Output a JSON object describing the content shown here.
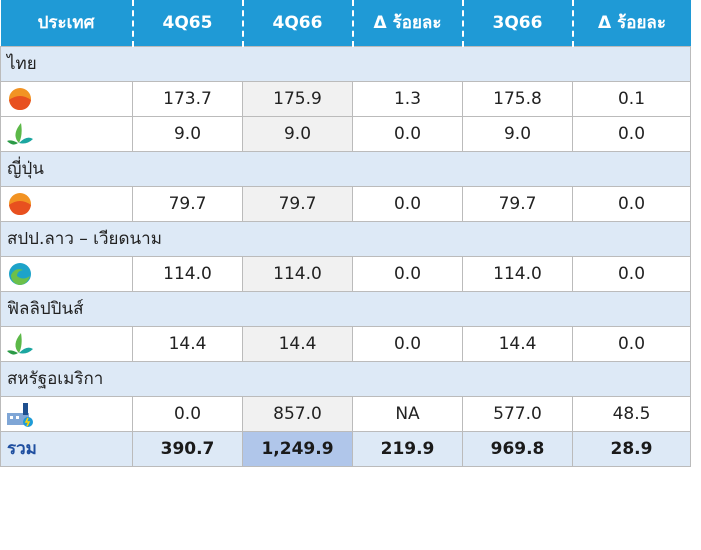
{
  "table": {
    "header": [
      "ประเทศ",
      "4Q65",
      "4Q66",
      "Δ ร้อยละ",
      "3Q66",
      "Δ ร้อยละ"
    ],
    "groups": [
      {
        "country": "ไทย",
        "rows": [
          [
            "173.7",
            "175.9",
            "1.3",
            "175.8",
            "0.1"
          ],
          [
            "9.0",
            "9.0",
            "0.0",
            "9.0",
            "0.0"
          ]
        ]
      },
      {
        "country": "ญี่ปุ่น",
        "rows": [
          [
            "79.7",
            "79.7",
            "0.0",
            "79.7",
            "0.0"
          ]
        ]
      },
      {
        "country": "สปป.ลาว – เวียดนาม",
        "rows": [
          [
            "114.0",
            "114.0",
            "0.0",
            "114.0",
            "0.0"
          ]
        ]
      },
      {
        "country": "ฟิลลิปปินส์",
        "rows": [
          [
            "14.4",
            "14.4",
            "0.0",
            "14.4",
            "0.0"
          ]
        ]
      },
      {
        "country": "สหรัฐอเมริกา",
        "rows": [
          [
            "0.0",
            "857.0",
            "NA",
            "577.0",
            "48.5"
          ]
        ]
      }
    ],
    "total": {
      "label": "รวม",
      "values": [
        "390.7",
        "1,249.9",
        "219.9",
        "969.8",
        "28.9"
      ]
    }
  }
}
